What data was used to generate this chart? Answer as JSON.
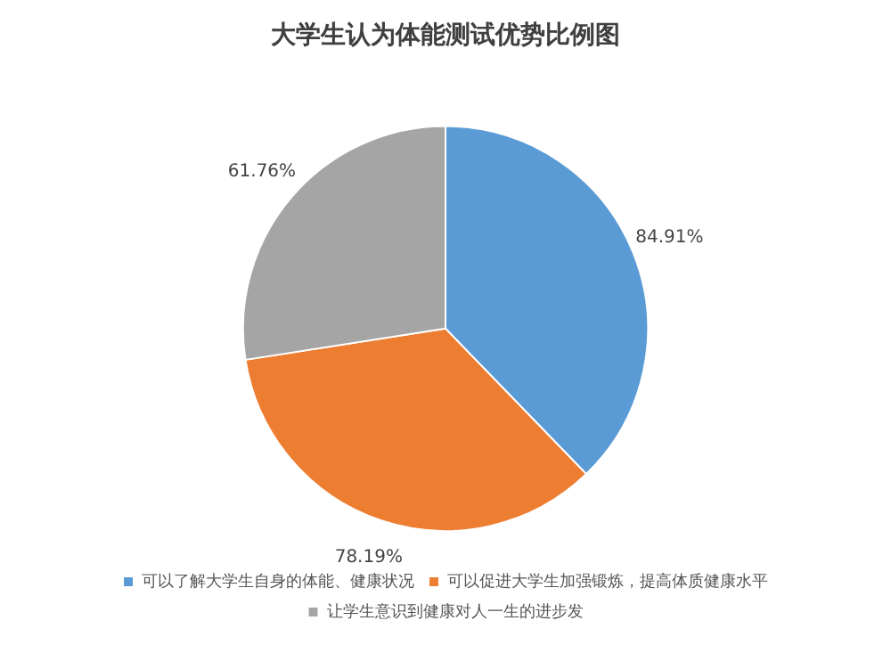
{
  "chart_data": {
    "type": "pie",
    "title": "大学生认为体能测试优势比例图",
    "categories": [
      "可以了解大学生自身的体能、健康状况",
      "可以促进大学生加强锻炼，提高体质健康水平",
      "让学生意识到健康对人一生的进步发"
    ],
    "values": [
      84.91,
      78.19,
      61.76
    ],
    "colors": [
      "#5b9bd5",
      "#ed7d31",
      "#a5a5a5"
    ],
    "value_labels": [
      "84.91%",
      "78.19%",
      "61.76%"
    ],
    "legend": "bottom"
  }
}
